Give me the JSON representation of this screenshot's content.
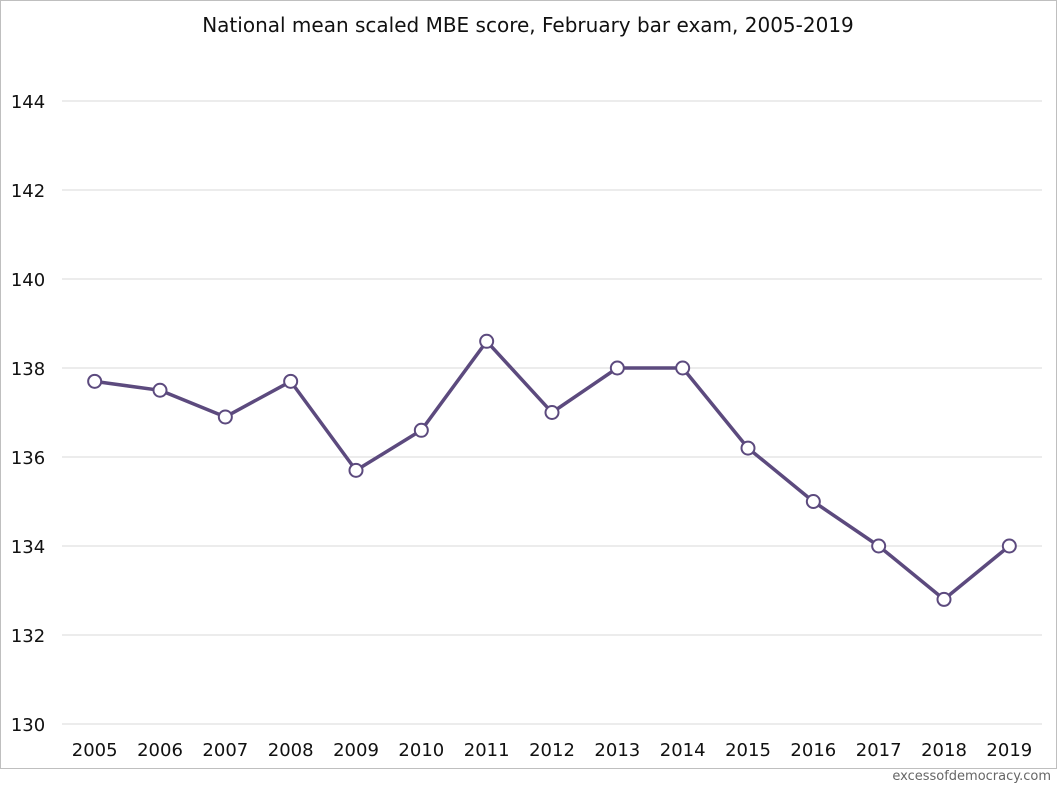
{
  "chart_data": {
    "type": "line",
    "title": "National mean scaled MBE score, February bar exam, 2005-2019",
    "xlabel": "",
    "ylabel": "",
    "categories": [
      "2005",
      "2006",
      "2007",
      "2008",
      "2009",
      "2010",
      "2011",
      "2012",
      "2013",
      "2014",
      "2015",
      "2016",
      "2017",
      "2018",
      "2019"
    ],
    "series": [
      {
        "values": [
          137.7,
          137.5,
          136.9,
          137.7,
          135.7,
          136.6,
          138.6,
          137.0,
          138.0,
          138.0,
          136.2,
          135.0,
          134.0,
          132.8,
          134.0
        ]
      }
    ],
    "ylim": [
      130,
      144
    ],
    "yticks": [
      "130",
      "132",
      "134",
      "136",
      "138",
      "140",
      "142",
      "144"
    ],
    "grid": "horizontal",
    "legend": "none",
    "colors": {
      "line": "#5c4a7e",
      "marker_fill": "#ffffff",
      "gridline": "#d9d9d9",
      "frame": "#bfbfbf"
    }
  },
  "credit": "excessofdemocracy.com"
}
